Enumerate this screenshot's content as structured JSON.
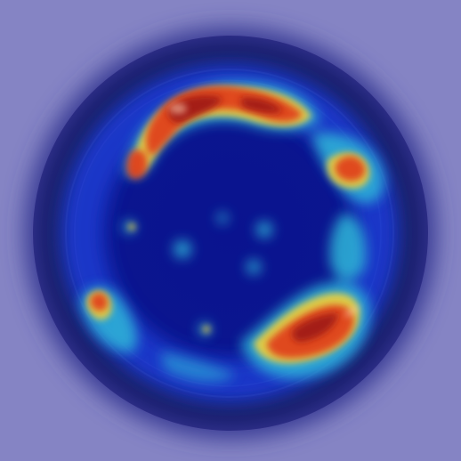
{
  "image": {
    "subject": "heatmap-overlay-on-circular-dish",
    "colors": {
      "background": "#8584c4",
      "dish_rim": "#2b2c84",
      "dish_inner": "#0b1390",
      "cold": "#1a3bcf",
      "cool": "#2fb7d8",
      "warm": "#f2d23a",
      "hot": "#e0421e",
      "hottest": "#9a1612"
    }
  }
}
